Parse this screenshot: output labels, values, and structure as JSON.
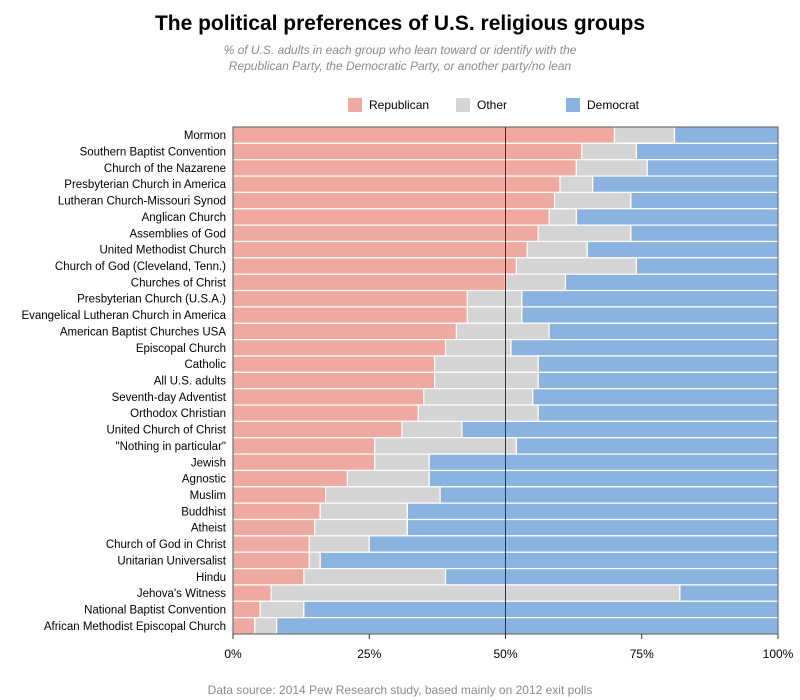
{
  "title": "The political preferences of U.S. religious groups",
  "subtitle_line1": "% of U.S. adults in each group who lean toward or identify with the",
  "subtitle_line2": "Republican Party, the Democratic Party, or another party/no lean",
  "source": "Data source: 2014 Pew Research study, based mainly on 2012 exit polls",
  "chart_data": {
    "type": "bar",
    "orientation": "horizontal",
    "stacked": true,
    "unit": "%",
    "xlim": [
      0,
      100
    ],
    "x_ticks": [
      0,
      25,
      50,
      75,
      100
    ],
    "x_tick_labels": [
      "0%",
      "25%",
      "50%",
      "75%",
      "100%"
    ],
    "reference_line": 50,
    "legend_position": "top",
    "categories": [
      "Mormon",
      "Southern Baptist Convention",
      "Church of the Nazarene",
      "Presbyterian Church in America",
      "Lutheran Church-Missouri Synod",
      "Anglican Church",
      "Assemblies of God",
      "United Methodist Church",
      "Church of God (Cleveland, Tenn.)",
      "Churches of Christ",
      "Presbyterian Church (U.S.A.)",
      "Evangelical Lutheran Church in America",
      "American Baptist Churches USA",
      "Episcopal Church",
      "Catholic",
      "All U.S. adults",
      "Seventh-day Adventist",
      "Orthodox Christian",
      "United Church of Christ",
      "\"Nothing in particular\"",
      "Jewish",
      "Agnostic",
      "Muslim",
      "Buddhist",
      "Atheist",
      "Church of God in Christ",
      "Unitarian Universalist",
      "Hindu",
      "Jehova's Witness",
      "National Baptist Convention",
      "African Methodist Episcopal Church"
    ],
    "series": [
      {
        "name": "Republican",
        "color": "#eeaaa0",
        "values": [
          70,
          64,
          63,
          60,
          59,
          58,
          56,
          54,
          52,
          50,
          43,
          43,
          41,
          39,
          37,
          37,
          35,
          34,
          31,
          26,
          26,
          21,
          17,
          16,
          15,
          14,
          14,
          13,
          7,
          5,
          4
        ]
      },
      {
        "name": "Other",
        "color": "#d4d4d4",
        "values": [
          11,
          10,
          13,
          6,
          14,
          5,
          17,
          11,
          22,
          11,
          10,
          10,
          17,
          12,
          19,
          19,
          20,
          22,
          11,
          26,
          10,
          15,
          21,
          16,
          17,
          11,
          2,
          26,
          75,
          8,
          4
        ]
      },
      {
        "name": "Democrat",
        "color": "#8ab3e0",
        "values": [
          19,
          26,
          24,
          34,
          27,
          37,
          27,
          35,
          26,
          39,
          47,
          47,
          42,
          49,
          44,
          44,
          45,
          44,
          58,
          48,
          64,
          64,
          62,
          68,
          68,
          75,
          84,
          61,
          18,
          87,
          92
        ]
      }
    ]
  }
}
